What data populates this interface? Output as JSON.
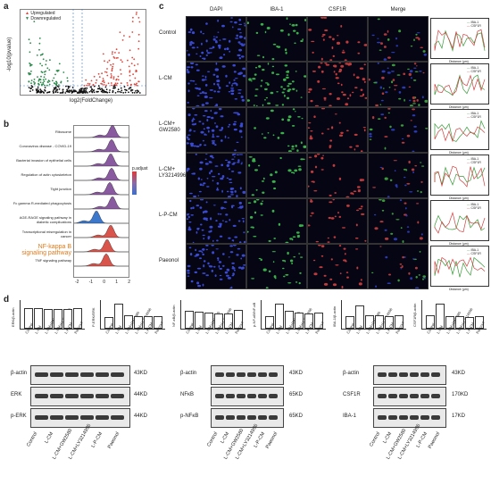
{
  "panels": {
    "a": "a",
    "b": "b",
    "c": "c",
    "d": "d"
  },
  "volcano": {
    "legend": [
      "Upregulated",
      "Downregulated"
    ],
    "xlabel": "log2(FoldChange)",
    "ylabel": "-log10(pvalue)",
    "yticks": [
      "0",
      "20",
      "40",
      "60",
      "80"
    ],
    "xticks": [
      "-1.5",
      "-1.0",
      "-0.5",
      "0.0",
      "0.5",
      "1.0",
      "1.5",
      "2.0",
      "2.5",
      "3.0"
    ],
    "colors": {
      "up": "#e0453a",
      "down": "#2a8a4a",
      "ns": "#111111"
    }
  },
  "ridge": {
    "pathways": [
      "Ribosome",
      "Coronavirus disease - COVID-19",
      "Bacterial invasion of epithelial cells",
      "Regulation of actin cytoskeleton",
      "Tight junction",
      "Fc gamma R-mediated phagocytosis",
      "AGE-RAGE signaling pathway in diabetic complications",
      "Transcriptional misregulation in cancer",
      "NF-kappa B signaling pathway",
      "TNF signaling pathway"
    ],
    "highlight": "NF-kappa B signaling pathway",
    "xticks": [
      "-2",
      "-1",
      "0",
      "1",
      "2"
    ],
    "scale_label": "p.adjust"
  },
  "micro": {
    "columns": [
      "DAPI",
      "IBA-1",
      "CSF1R",
      "Merge"
    ],
    "rows": [
      "Control",
      "L-CM",
      "L-CM+ GW2580",
      "L-CM+ LY3214996",
      "L-P-CM",
      "Paeonol"
    ],
    "profile_xlabel": "Distance (μm)",
    "profile_ylabel": "Intensity (a.u.)",
    "profile_legend": [
      "IBA-1",
      "CSF1R"
    ]
  },
  "bars": {
    "groups": [
      "Control",
      "L-CM",
      "L-CM+GW2580",
      "L-CM+LY3214996",
      "L-P-CM",
      "Paeonol"
    ],
    "charts": [
      {
        "ylabel": "ERK/β-actin",
        "values": [
          1.0,
          0.97,
          0.95,
          0.93,
          0.92,
          0.96
        ]
      },
      {
        "ylabel": "P-ERK/ERK",
        "values": [
          0.5,
          1.2,
          0.6,
          0.55,
          0.55,
          0.55
        ]
      },
      {
        "ylabel": "NF-κB/β-actin",
        "values": [
          0.85,
          0.8,
          0.75,
          0.7,
          0.72,
          0.9
        ]
      },
      {
        "ylabel": "p-NF-κB/NF-κB",
        "values": [
          0.55,
          1.2,
          0.85,
          0.75,
          0.7,
          0.75
        ]
      },
      {
        "ylabel": "IBA-1/β-actin",
        "values": [
          0.55,
          1.1,
          0.6,
          0.6,
          0.55,
          0.6
        ]
      },
      {
        "ylabel": "CSF1R/β-actin",
        "values": [
          0.6,
          1.2,
          0.55,
          0.55,
          0.5,
          0.55
        ]
      }
    ]
  },
  "blots": [
    {
      "rows": [
        "β-actin",
        "ERK",
        "p-ERK"
      ],
      "kd": [
        "43KD",
        "44KD",
        "44KD"
      ]
    },
    {
      "rows": [
        "β-actin",
        "NFκB",
        "p-NFκB"
      ],
      "kd": [
        "43KD",
        "65KD",
        "65KD"
      ]
    },
    {
      "rows": [
        "β-actin",
        "CSF1R",
        "IBA-1"
      ],
      "kd": [
        "43KD",
        "170KD",
        "17KD"
      ]
    }
  ],
  "blot_lanes": [
    "Control",
    "L-CM",
    "L-CM+GW2580",
    "L-CM+LY3214996",
    "L-P-CM",
    "Paeonol"
  ]
}
